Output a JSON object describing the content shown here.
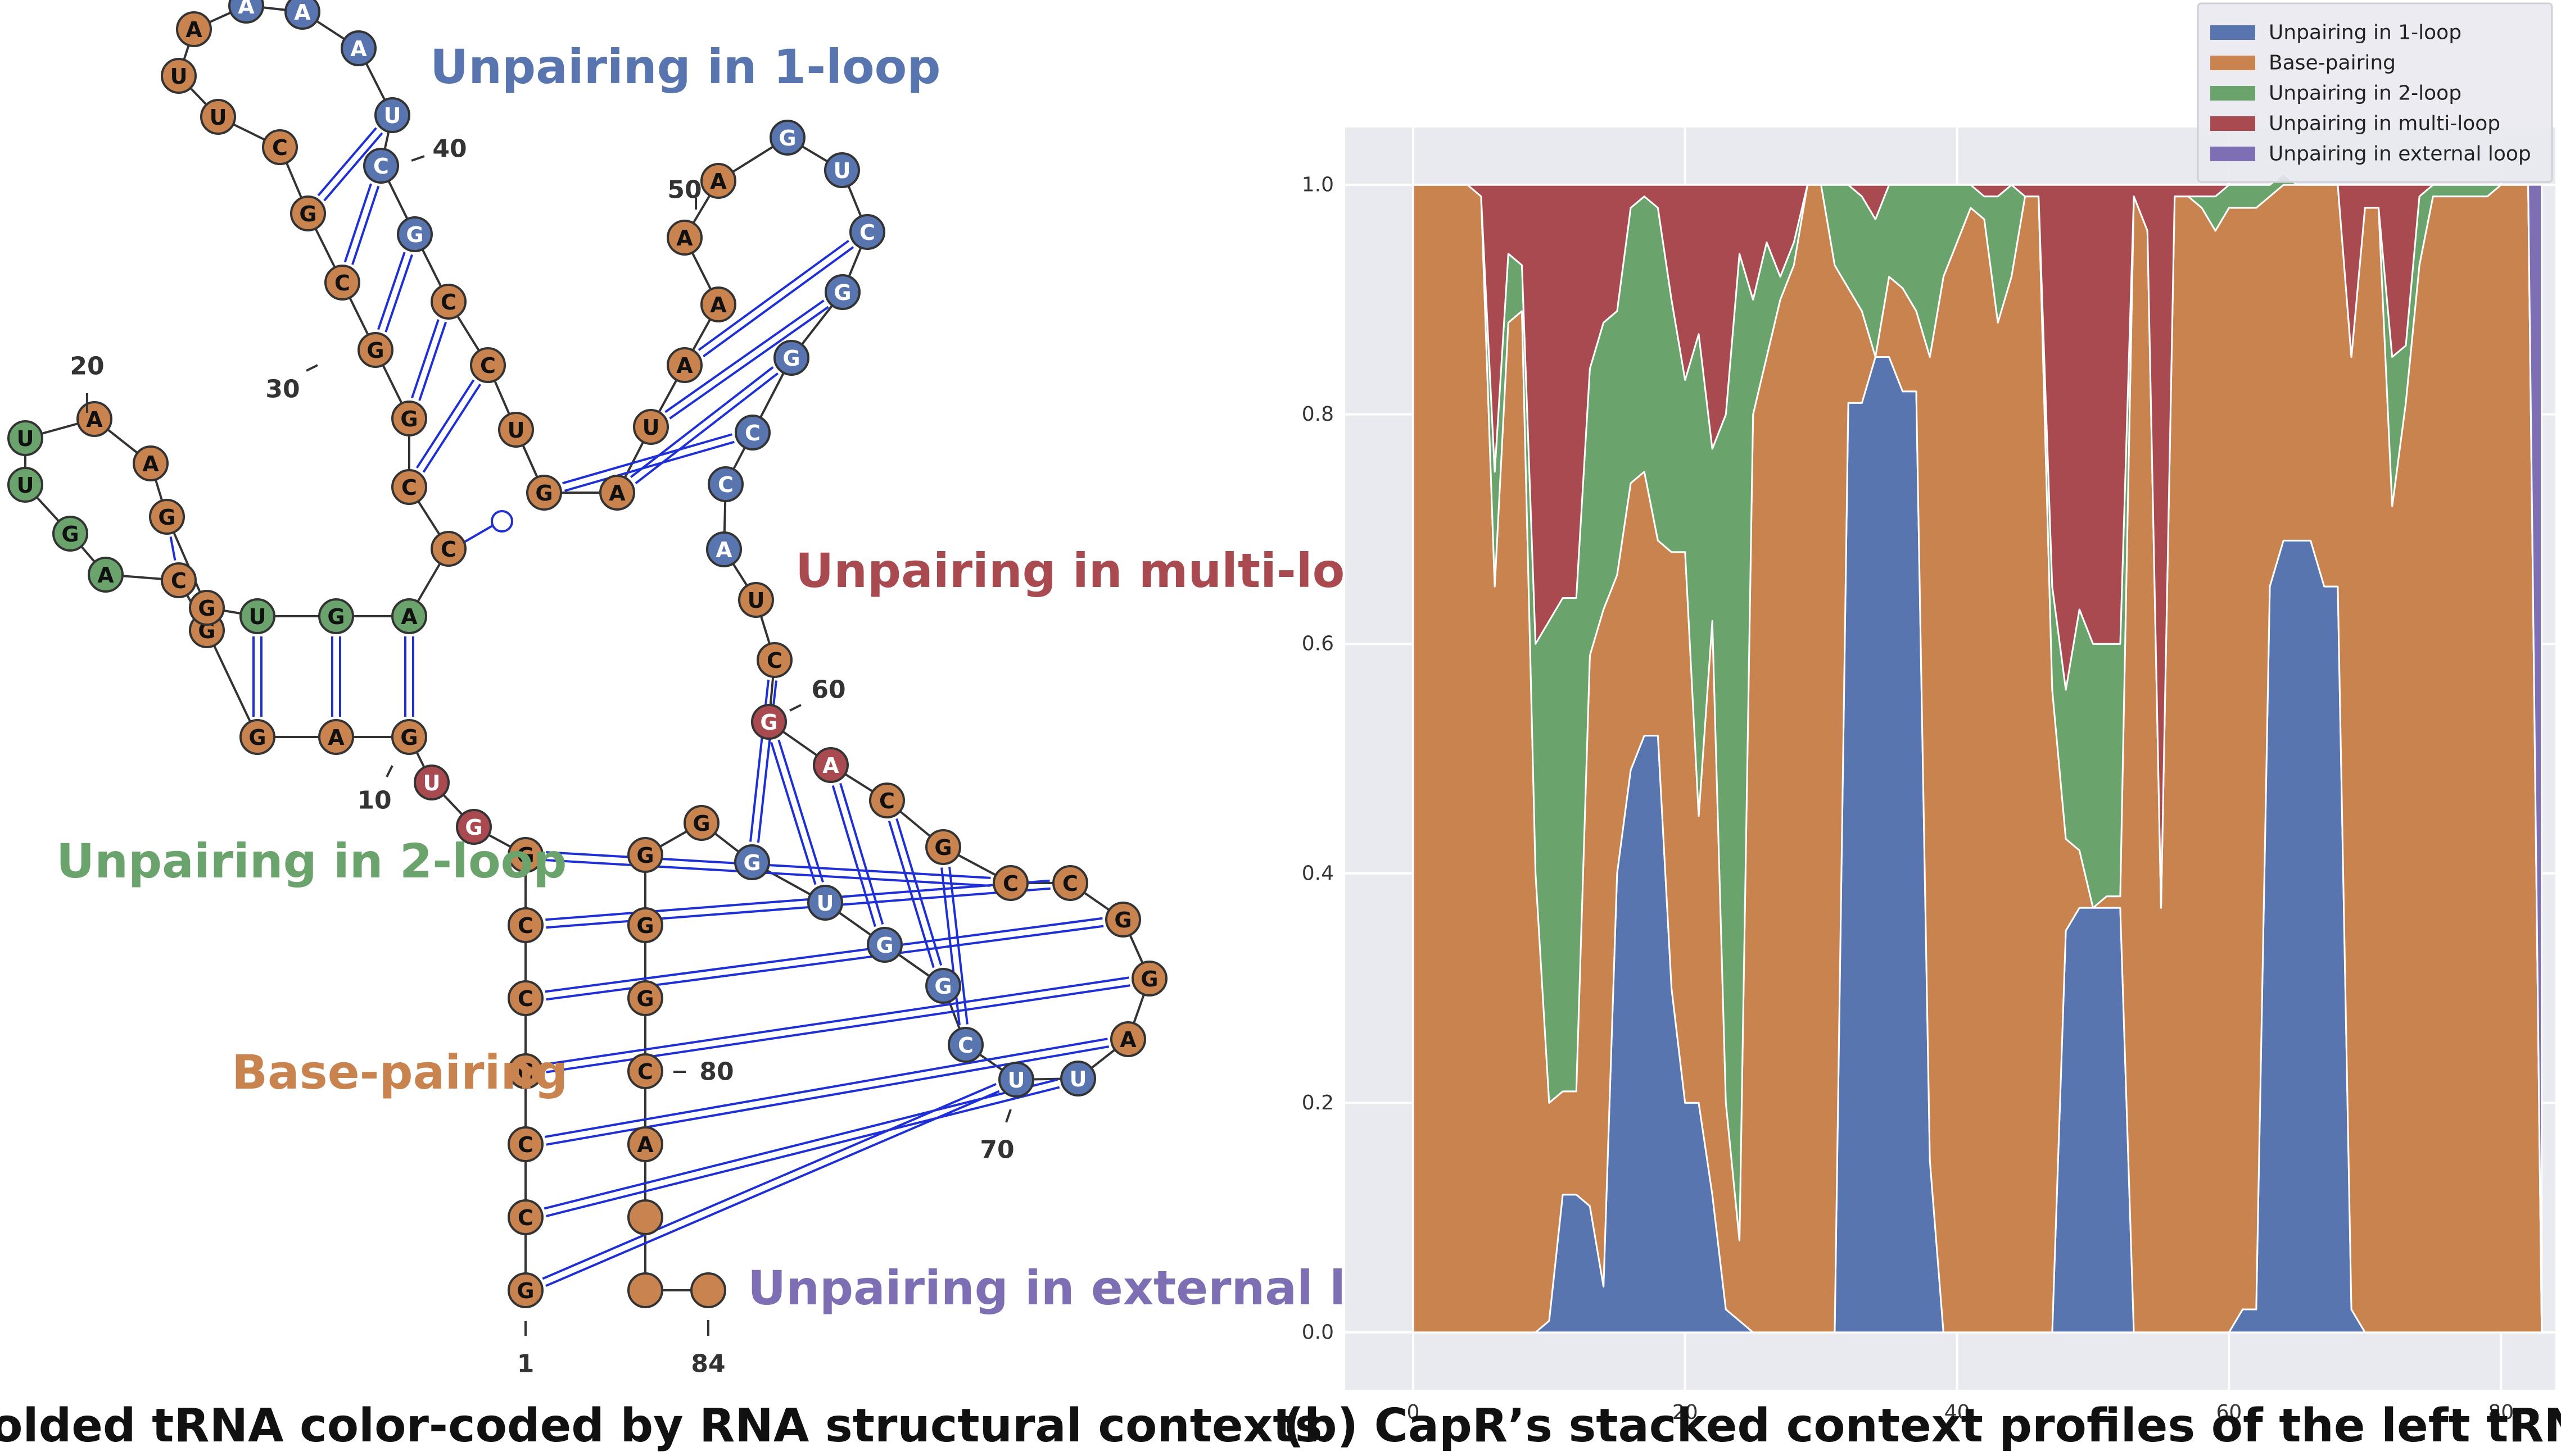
{
  "panel_a": {
    "caption": "(a) A folded tRNA color-coded by RNA structural contexts",
    "sequence": "GCCCCCGGUGAGGCAGUUAAGGUGACCGGCGCUUAAAAUCGCCUGAUAAAAGUCGGCCAUCGACGCCGGAUUCGGUGGGGGCA",
    "contexts": "PPPPPPPMMPPPPPSSSSPPPPSSSPPPPPPPPPPOOOOOOPPPPPPPPPPOOOOOOOOPPMMPPPPPPPOOOOOOOPPPPPPPP",
    "context_labels": {
      "O": "Unpairing in 1-loop",
      "M": "Unpairing in multi-loop",
      "S": "Unpairing in 2-loop",
      "P": "Base-pairing",
      "E": "Unpairing in external loop"
    },
    "position_numbers": [
      "1",
      "10",
      "20",
      "30",
      "40",
      "50",
      "60",
      "70",
      "80",
      "84"
    ]
  },
  "panel_b": {
    "caption": "(b) CapR’s stacked context profiles of the left tRNA"
  },
  "colors": {
    "loop1": "#5875b0",
    "pairing": "#c9834f",
    "loop2": "#6aa36c",
    "multi": "#a94a50",
    "external": "#7e6fb4",
    "plot_bg": "#e9e9f0"
  },
  "chart_data": {
    "type": "area",
    "stacked": true,
    "title": "",
    "xlabel": "",
    "ylabel": "",
    "xlim": [
      -5,
      84
    ],
    "ylim": [
      -0.05,
      1.05
    ],
    "xticks": [
      "0",
      "20",
      "40",
      "60",
      "80"
    ],
    "yticks": [
      "0.0",
      "0.2",
      "0.4",
      "0.6",
      "0.8",
      "1.0"
    ],
    "grid": true,
    "legend_position": "top-right",
    "x": [
      0,
      1,
      2,
      3,
      4,
      5,
      6,
      7,
      8,
      9,
      10,
      11,
      12,
      13,
      14,
      15,
      16,
      17,
      18,
      19,
      20,
      21,
      22,
      23,
      24,
      25,
      26,
      27,
      28,
      29,
      30,
      31,
      32,
      33,
      34,
      35,
      36,
      37,
      38,
      39,
      40,
      41,
      42,
      43,
      44,
      45,
      46,
      47,
      48,
      49,
      50,
      51,
      52,
      53,
      54,
      55,
      56,
      57,
      58,
      59,
      60,
      61,
      62,
      63,
      64,
      65,
      66,
      67,
      68,
      69,
      70,
      71,
      72,
      73,
      74,
      75,
      76,
      77,
      78,
      79,
      80,
      81,
      82,
      83
    ],
    "series": [
      {
        "name": "Unpairing in 1-loop",
        "values": [
          0,
          0,
          0,
          0,
          0,
          0,
          0,
          0,
          0,
          0,
          0.01,
          0.12,
          0.12,
          0.11,
          0.04,
          0.4,
          0.49,
          0.52,
          0.52,
          0.3,
          0.2,
          0.2,
          0.12,
          0.02,
          0.01,
          0,
          0,
          0,
          0,
          0,
          0,
          0,
          0.81,
          0.81,
          0.85,
          0.85,
          0.82,
          0.82,
          0.15,
          0,
          0,
          0,
          0,
          0,
          0,
          0,
          0,
          0,
          0.35,
          0.37,
          0.37,
          0.37,
          0.37,
          0,
          0,
          0,
          0,
          0,
          0,
          0,
          0,
          0.02,
          0.02,
          0.65,
          0.69,
          0.69,
          0.69,
          0.65,
          0.65,
          0.02,
          0,
          0,
          0,
          0,
          0,
          0,
          0,
          0,
          0,
          0,
          0,
          0,
          0,
          0
        ]
      },
      {
        "name": "Base-pairing",
        "values": [
          1,
          1,
          1,
          1,
          1,
          0.99,
          0.65,
          0.88,
          0.89,
          0.4,
          0.19,
          0.09,
          0.09,
          0.48,
          0.59,
          0.26,
          0.25,
          0.23,
          0.17,
          0.38,
          0.48,
          0.25,
          0.5,
          0.18,
          0.07,
          0.8,
          0.85,
          0.9,
          0.93,
          1,
          1,
          0.93,
          0.1,
          0.08,
          0,
          0.07,
          0.09,
          0.07,
          0.7,
          0.92,
          0.95,
          0.98,
          0.97,
          0.88,
          0.92,
          0.99,
          0.99,
          0.56,
          0.08,
          0.05,
          0,
          0.01,
          0.01,
          0.99,
          0.96,
          0.37,
          0.99,
          0.99,
          0.98,
          0.96,
          0.98,
          0.96,
          0.96,
          0.34,
          0.31,
          0.31,
          0.31,
          0.35,
          0.35,
          0.83,
          0.98,
          0.98,
          0.72,
          0.81,
          0.93,
          0.99,
          0.99,
          0.99,
          0.99,
          0.99,
          1,
          1,
          1,
          0
        ]
      },
      {
        "name": "Unpairing in 2-loop",
        "values": [
          0,
          0,
          0,
          0,
          0,
          0,
          0.1,
          0.06,
          0.04,
          0.2,
          0.42,
          0.43,
          0.43,
          0.25,
          0.25,
          0.23,
          0.24,
          0.24,
          0.29,
          0.22,
          0.15,
          0.42,
          0.15,
          0.6,
          0.86,
          0.1,
          0.1,
          0.02,
          0.02,
          0,
          0,
          0.07,
          0.09,
          0.1,
          0.12,
          0.08,
          0.09,
          0.11,
          0.15,
          0.08,
          0.05,
          0.02,
          0.02,
          0.11,
          0.08,
          0,
          0,
          0.09,
          0.13,
          0.21,
          0.23,
          0.22,
          0.22,
          0,
          0,
          0,
          0,
          0,
          0.01,
          0.03,
          0.02,
          0.02,
          0.02,
          0.01,
          0.01,
          0,
          0,
          0,
          0,
          0,
          0,
          0,
          0.13,
          0.05,
          0.06,
          0.01,
          0.01,
          0.01,
          0.01,
          0.01,
          0,
          0,
          0,
          0
        ]
      },
      {
        "name": "Unpairing in multi-loop",
        "values": [
          0,
          0,
          0,
          0,
          0,
          0.01,
          0.25,
          0.06,
          0.07,
          0.4,
          0.38,
          0.36,
          0.36,
          0.16,
          0.12,
          0.11,
          0.02,
          0.01,
          0.02,
          0.1,
          0.17,
          0.13,
          0.23,
          0.2,
          0.06,
          0.1,
          0.05,
          0.08,
          0.05,
          0,
          0,
          0,
          0,
          0.01,
          0.03,
          0,
          0,
          0,
          0,
          0,
          0,
          0,
          0.01,
          0.01,
          0,
          0.01,
          0.01,
          0.35,
          0.44,
          0.37,
          0.4,
          0.4,
          0.4,
          0.01,
          0.04,
          0.63,
          0.01,
          0.01,
          0.01,
          0.01,
          0,
          0,
          0,
          0,
          0,
          0,
          0,
          0,
          0,
          0.15,
          0.02,
          0.02,
          0.15,
          0.14,
          0.01,
          0,
          0,
          0,
          0,
          0,
          0,
          0,
          0,
          0
        ]
      },
      {
        "name": "Unpairing in external loop",
        "values": [
          0,
          0,
          0,
          0,
          0,
          0,
          0,
          0,
          0,
          0,
          0,
          0,
          0,
          0,
          0,
          0,
          0,
          0,
          0,
          0,
          0,
          0,
          0,
          0,
          0,
          0,
          0,
          0,
          0,
          0,
          0,
          0,
          0,
          0,
          0,
          0,
          0,
          0,
          0,
          0,
          0,
          0,
          0,
          0,
          0,
          0,
          0,
          0,
          0,
          0,
          0,
          0,
          0,
          0,
          0,
          0,
          0,
          0,
          0,
          0,
          0,
          0,
          0,
          0,
          0,
          0,
          0,
          0,
          0,
          0,
          0,
          0,
          0,
          0,
          0,
          0,
          0,
          0,
          0,
          0,
          0,
          0,
          0,
          1
        ]
      }
    ]
  }
}
